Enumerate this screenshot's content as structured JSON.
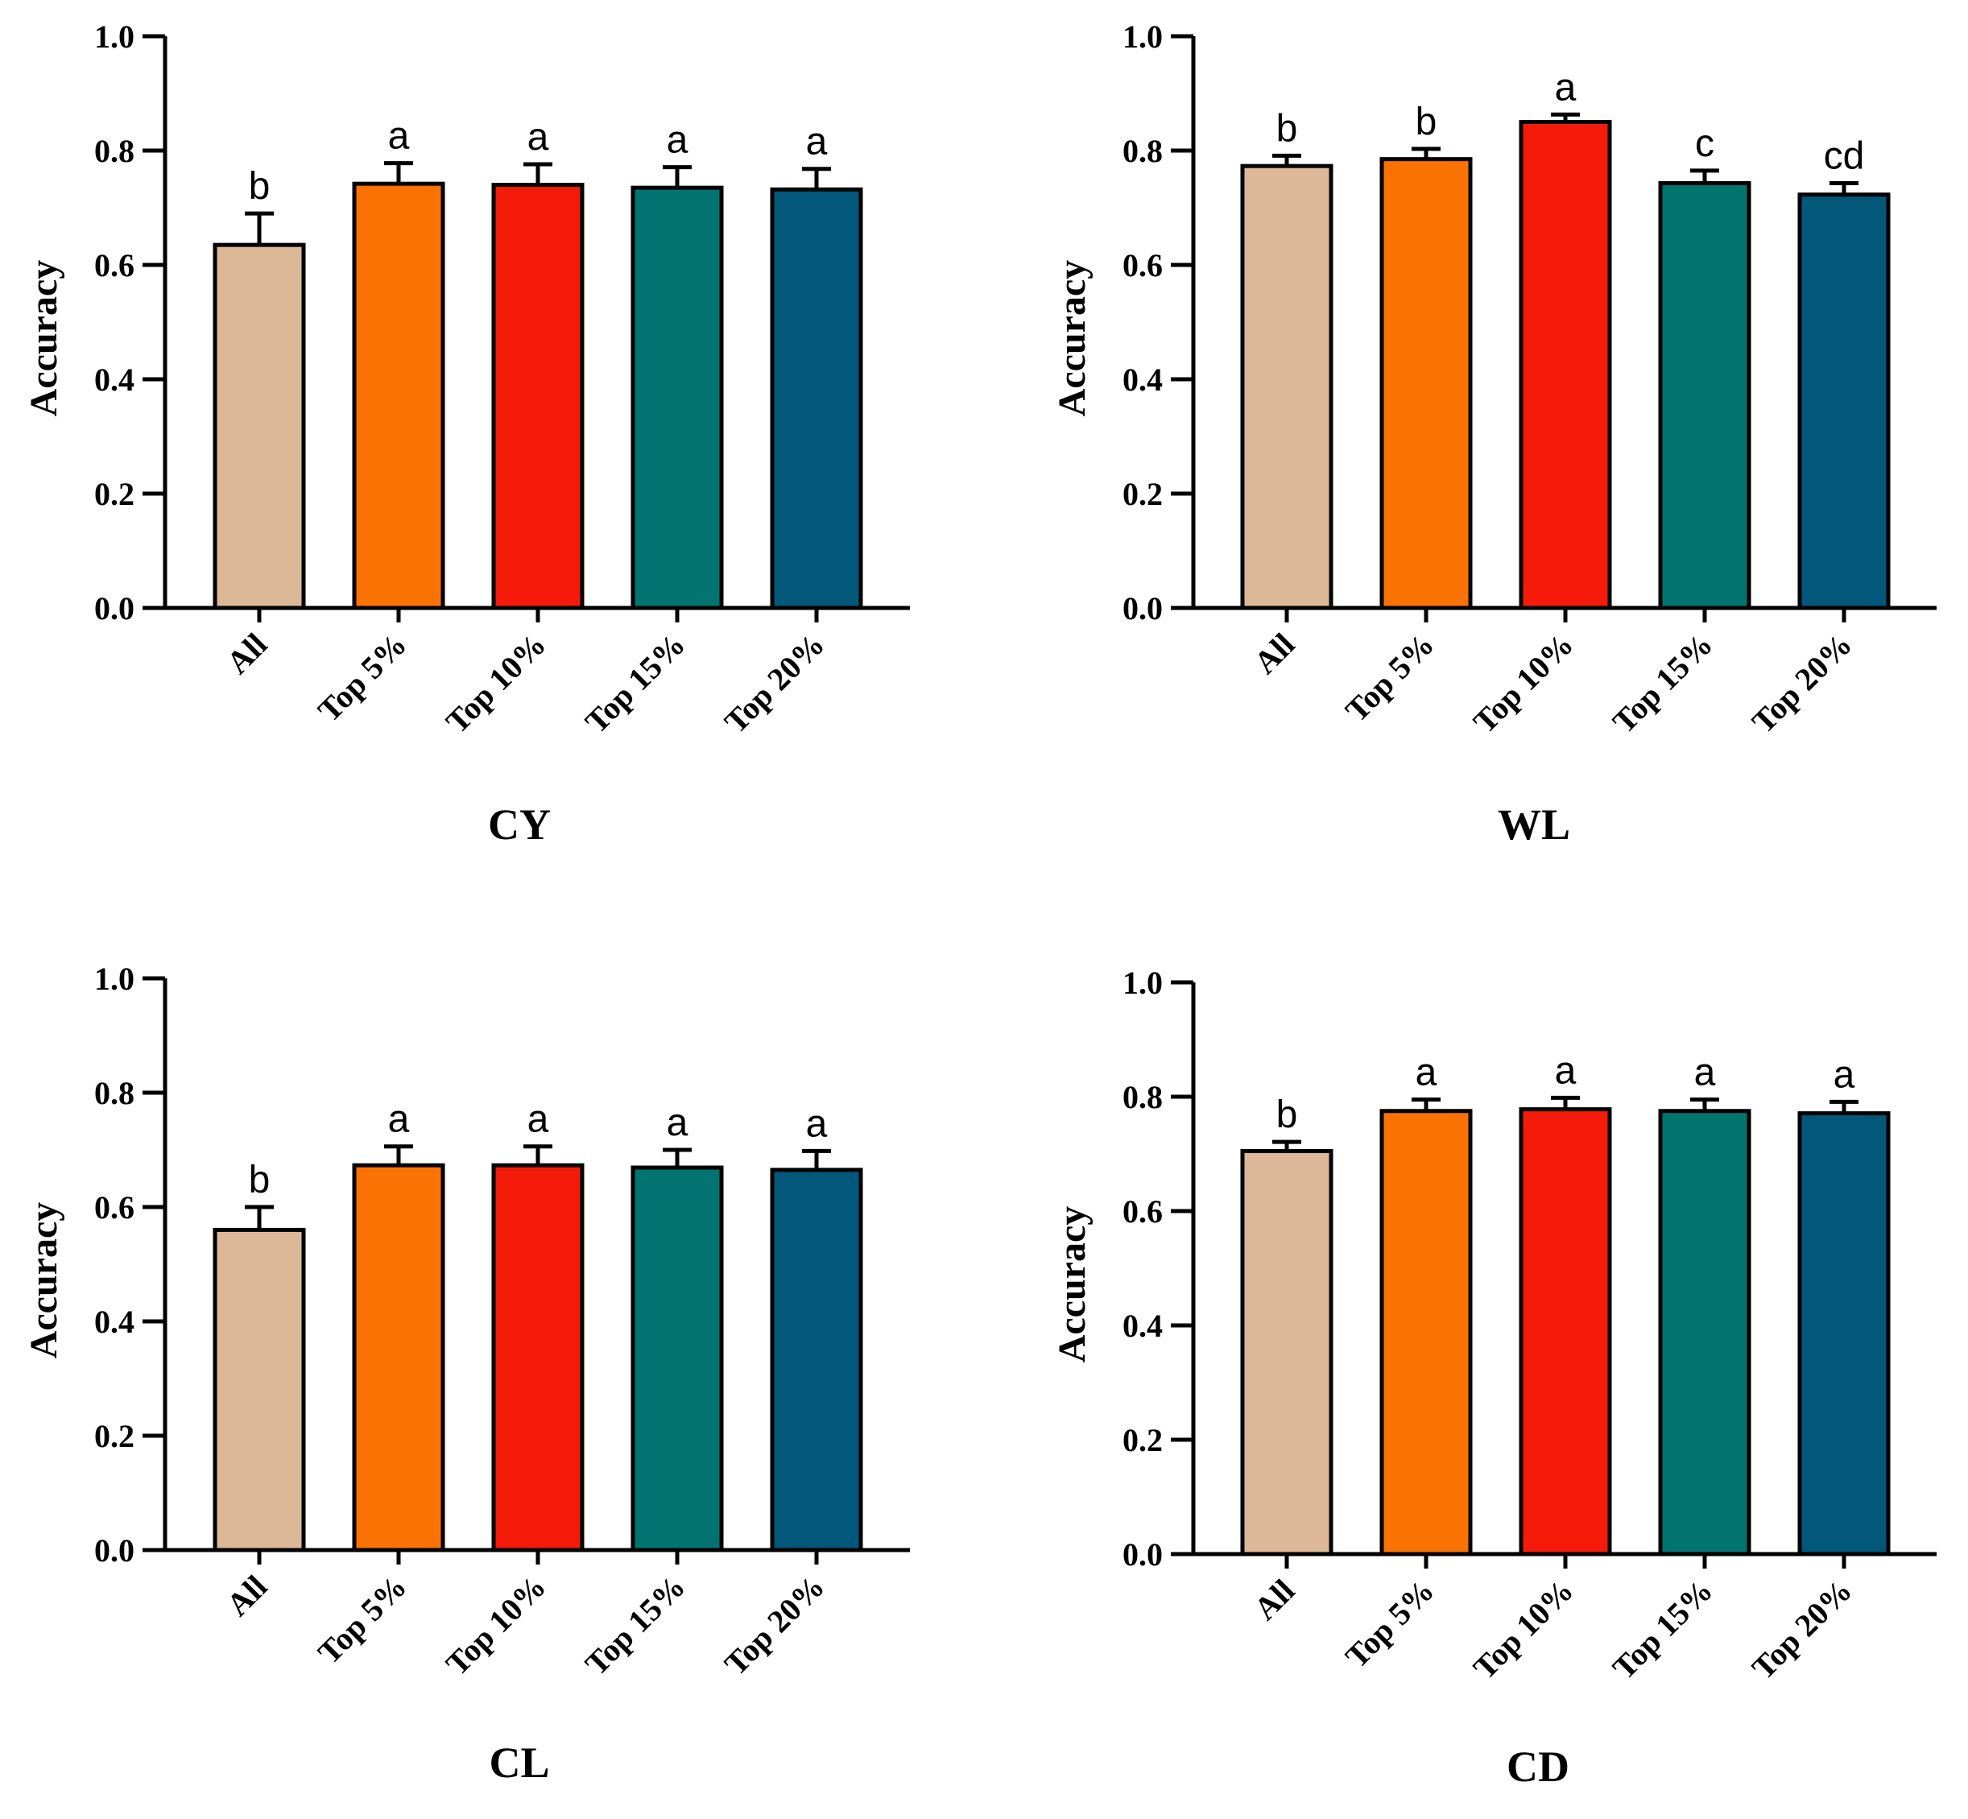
{
  "figure": {
    "chart_data": [
      {
        "type": "bar",
        "title": "CY",
        "xlabel": "",
        "ylabel": "Accuracy",
        "ylim": [
          0,
          1.0
        ],
        "yticks": [
          "0.0",
          "0.2",
          "0.4",
          "0.6",
          "0.8",
          "1.0"
        ],
        "categories": [
          "All",
          "Top 5%",
          "Top 10%",
          "Top 15%",
          "Top 20%"
        ],
        "values": [
          0.635,
          0.742,
          0.74,
          0.735,
          0.732
        ],
        "errors": [
          0.055,
          0.036,
          0.036,
          0.036,
          0.036
        ],
        "significance": [
          "b",
          "a",
          "a",
          "a",
          "a"
        ],
        "colors": [
          "#dcb898",
          "#fb7204",
          "#f41b0a",
          "#027470",
          "#02577a"
        ]
      },
      {
        "type": "bar",
        "title": "WL",
        "xlabel": "",
        "ylabel": "Accuracy",
        "ylim": [
          0,
          1.0
        ],
        "yticks": [
          "0.0",
          "0.2",
          "0.4",
          "0.6",
          "0.8",
          "1.0"
        ],
        "categories": [
          "All",
          "Top 5%",
          "Top 10%",
          "Top 15%",
          "Top 20%"
        ],
        "values": [
          0.773,
          0.785,
          0.85,
          0.743,
          0.723
        ],
        "errors": [
          0.018,
          0.018,
          0.013,
          0.022,
          0.02
        ],
        "significance": [
          "b",
          "b",
          "a",
          "c",
          "cd"
        ],
        "colors": [
          "#dcb898",
          "#fb7204",
          "#f41b0a",
          "#027470",
          "#02577a"
        ]
      },
      {
        "type": "bar",
        "title": "CL",
        "xlabel": "",
        "ylabel": "Accuracy",
        "ylim": [
          0,
          1.0
        ],
        "yticks": [
          "0.0",
          "0.2",
          "0.4",
          "0.6",
          "0.8",
          "1.0"
        ],
        "categories": [
          "All",
          "Top 5%",
          "Top 10%",
          "Top 15%",
          "Top 20%"
        ],
        "values": [
          0.56,
          0.673,
          0.673,
          0.669,
          0.665
        ],
        "errors": [
          0.04,
          0.033,
          0.033,
          0.031,
          0.033
        ],
        "significance": [
          "b",
          "a",
          "a",
          "a",
          "a"
        ],
        "colors": [
          "#dcb898",
          "#fb7204",
          "#f41b0a",
          "#027470",
          "#02577a"
        ]
      },
      {
        "type": "bar",
        "title": "CD",
        "xlabel": "",
        "ylabel": "Accuracy",
        "ylim": [
          0,
          1.0
        ],
        "yticks": [
          "0.0",
          "0.2",
          "0.4",
          "0.6",
          "0.8",
          "1.0"
        ],
        "categories": [
          "All",
          "Top 5%",
          "Top 10%",
          "Top 15%",
          "Top 20%"
        ],
        "values": [
          0.705,
          0.775,
          0.778,
          0.775,
          0.771
        ],
        "errors": [
          0.016,
          0.02,
          0.02,
          0.02,
          0.02
        ],
        "significance": [
          "b",
          "a",
          "a",
          "a",
          "a"
        ],
        "colors": [
          "#dcb898",
          "#fb7204",
          "#f41b0a",
          "#027470",
          "#02577a"
        ]
      }
    ]
  }
}
